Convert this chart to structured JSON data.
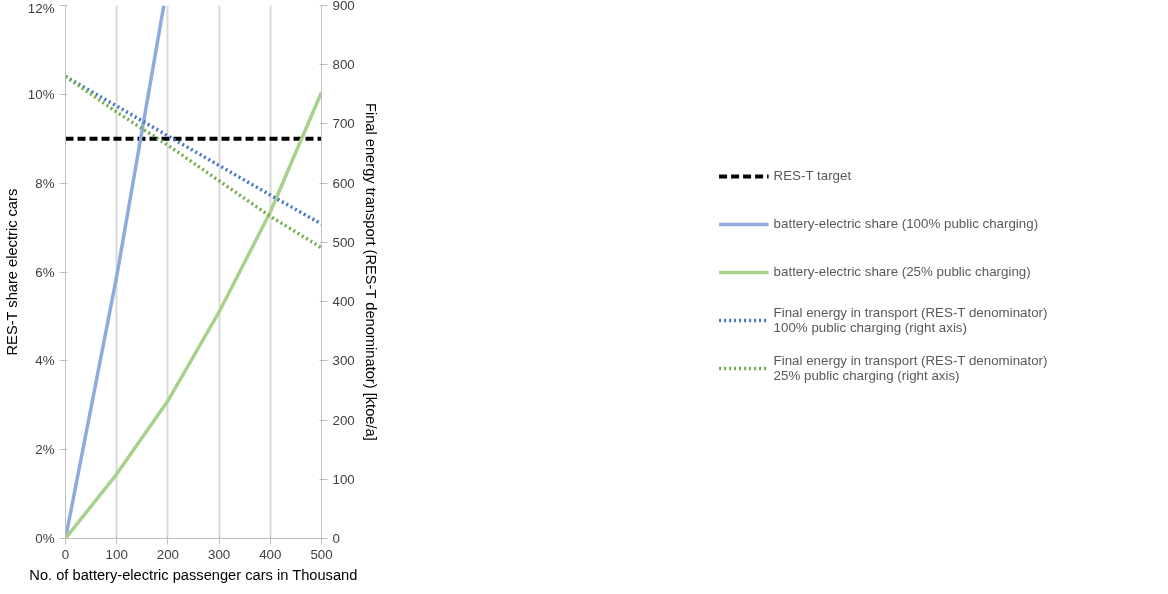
{
  "chart_data": {
    "type": "line",
    "xlabel": "No. of battery-electric passenger cars in Thousand",
    "ylabel": "RES-T share electric cars",
    "y2label": "Final energy transport (RES-T denominator) [ktoe/a]",
    "xlim": [
      0,
      500
    ],
    "xticks": [
      0,
      100,
      200,
      300,
      400,
      500
    ],
    "ylim": [
      0,
      12
    ],
    "yticks": [
      {
        "value": 0,
        "label": "0%"
      },
      {
        "value": 2,
        "label": "2%"
      },
      {
        "value": 4,
        "label": "4%"
      },
      {
        "value": 6,
        "label": "6%"
      },
      {
        "value": 8,
        "label": "8%"
      },
      {
        "value": 10,
        "label": "10%"
      },
      {
        "value": 12,
        "label": "12%"
      }
    ],
    "y2lim": [
      0,
      900
    ],
    "y2ticks": [
      0,
      100,
      200,
      300,
      400,
      500,
      600,
      700,
      800,
      900
    ],
    "grid": "x",
    "legend": "right",
    "marker": "none",
    "series": [
      {
        "name": "RES-T target",
        "color": "#000000",
        "line_style": "dashed",
        "x": [
          0,
          500
        ],
        "values": [
          9,
          9
        ]
      },
      {
        "name": "battery-electric share (100% public charging)",
        "color": "#8faadc",
        "line_style": "solid",
        "x": [
          0,
          100,
          192
        ],
        "values": [
          0,
          5.9,
          12
        ]
      },
      {
        "name": "battery-electric share (25% public charging)",
        "color": "#a9d18e",
        "line_style": "solid",
        "x": [
          0,
          100,
          200,
          300,
          400,
          500
        ],
        "values": [
          0,
          1.45,
          3.1,
          5.1,
          7.35,
          10.05
        ]
      },
      {
        "name": "Final energy in transport (RES-T denominator)\n100% public charging (right axis)",
        "color": "#4472c4",
        "line_style": "dotted",
        "axis": "y2",
        "x": [
          0,
          100,
          200,
          300,
          400,
          500
        ],
        "values": [
          780,
          730,
          680,
          630,
          580,
          531
        ]
      },
      {
        "name": "Final energy in transport (RES-T denominator)\n25% public charging (right axis)",
        "color": "#70ad47",
        "line_style": "dotted",
        "axis": "y2",
        "x": [
          0,
          100,
          200,
          300,
          400,
          500
        ],
        "values": [
          780,
          720,
          664,
          604,
          544,
          491
        ]
      }
    ]
  }
}
